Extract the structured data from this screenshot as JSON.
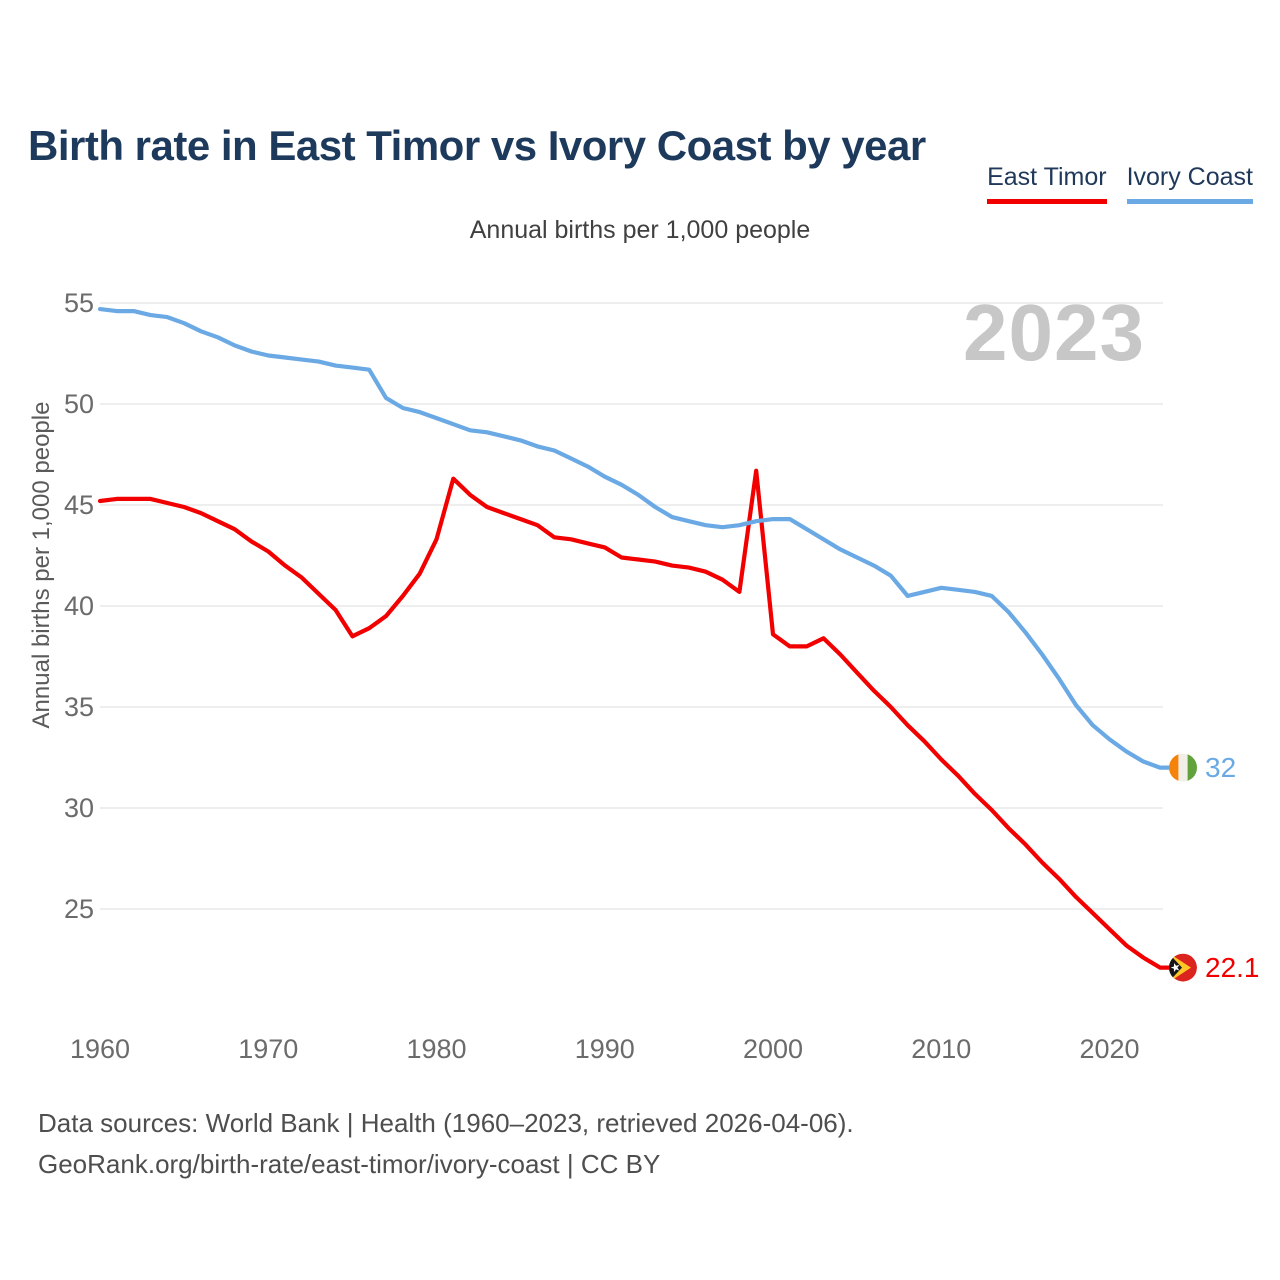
{
  "header": {
    "title": "Birth rate in East Timor vs Ivory Coast by year"
  },
  "legend": {
    "items": [
      {
        "label": "East Timor",
        "color": "#f20000"
      },
      {
        "label": "Ivory Coast",
        "color": "#6aa9e4"
      }
    ]
  },
  "subtitle": "Annual births per 1,000 people",
  "watermark": "2023",
  "y_axis_label": "Annual births per 1,000 people",
  "footer": {
    "line1": "Data sources: World Bank | Health (1960–2023, retrieved 2026-04-06).",
    "line2": "GeoRank.org/birth-rate/east-timor/ivory-coast | CC BY"
  },
  "chart_data": {
    "type": "line",
    "title": "Birth rate in East Timor vs Ivory Coast by year",
    "subtitle": "Annual births per 1,000 people",
    "ylabel": "Annual births per 1,000 people",
    "grid": true,
    "legend_position": "top-right",
    "ylim": [
      21,
      56
    ],
    "x_ticks": [
      1960,
      1970,
      1980,
      1990,
      2000,
      2010,
      2020
    ],
    "y_ticks": [
      55,
      50,
      45,
      40,
      35,
      30,
      25
    ],
    "years": [
      1960,
      1961,
      1962,
      1963,
      1964,
      1965,
      1966,
      1967,
      1968,
      1969,
      1970,
      1971,
      1972,
      1973,
      1974,
      1975,
      1976,
      1977,
      1978,
      1979,
      1980,
      1981,
      1982,
      1983,
      1984,
      1985,
      1986,
      1987,
      1988,
      1989,
      1990,
      1991,
      1992,
      1993,
      1994,
      1995,
      1996,
      1997,
      1998,
      1999,
      2000,
      2001,
      2002,
      2003,
      2004,
      2005,
      2006,
      2007,
      2008,
      2009,
      2010,
      2011,
      2012,
      2013,
      2014,
      2015,
      2016,
      2017,
      2018,
      2019,
      2020,
      2021,
      2022,
      2023
    ],
    "series": [
      {
        "name": "East Timor",
        "color": "#f20000",
        "end_label": "22.1",
        "flag_icon": "east-timor-flag",
        "flag_colors": {
          "red": "#dc241f",
          "yellow": "#ffc628",
          "black": "#161616",
          "white": "#ffffff"
        },
        "values": [
          45.2,
          45.3,
          45.3,
          45.3,
          45.1,
          44.9,
          44.6,
          44.2,
          43.8,
          43.2,
          42.7,
          42.0,
          41.4,
          40.6,
          39.8,
          38.5,
          38.9,
          39.5,
          40.5,
          41.6,
          43.3,
          46.3,
          45.5,
          44.9,
          44.6,
          44.3,
          44.0,
          43.4,
          43.3,
          43.1,
          42.9,
          42.4,
          42.3,
          42.2,
          42.0,
          41.9,
          41.7,
          41.3,
          40.7,
          46.7,
          38.6,
          38.0,
          38.0,
          38.4,
          37.6,
          36.7,
          35.8,
          35.0,
          34.1,
          33.3,
          32.4,
          31.6,
          30.7,
          29.9,
          29.0,
          28.2,
          27.3,
          26.5,
          25.6,
          24.8,
          24.0,
          23.2,
          22.6,
          22.1
        ]
      },
      {
        "name": "Ivory Coast",
        "color": "#6aa9e4",
        "end_label": "32",
        "flag_icon": "ivory-coast-flag",
        "flag_colors": {
          "orange": "#f5820b",
          "white": "#f2efe9",
          "green": "#61a23c"
        },
        "values": [
          54.7,
          54.6,
          54.6,
          54.4,
          54.3,
          54.0,
          53.6,
          53.3,
          52.9,
          52.6,
          52.4,
          52.3,
          52.2,
          52.1,
          51.9,
          51.8,
          51.7,
          50.3,
          49.8,
          49.6,
          49.3,
          49.0,
          48.7,
          48.6,
          48.4,
          48.2,
          47.9,
          47.7,
          47.3,
          46.9,
          46.4,
          46.0,
          45.5,
          44.9,
          44.4,
          44.2,
          44.0,
          43.9,
          44.0,
          44.2,
          44.3,
          44.3,
          43.8,
          43.3,
          42.8,
          42.4,
          42.0,
          41.5,
          40.5,
          40.7,
          40.9,
          40.8,
          40.7,
          40.5,
          39.7,
          38.7,
          37.6,
          36.4,
          35.1,
          34.1,
          33.4,
          32.8,
          32.3,
          32.0
        ]
      }
    ]
  }
}
